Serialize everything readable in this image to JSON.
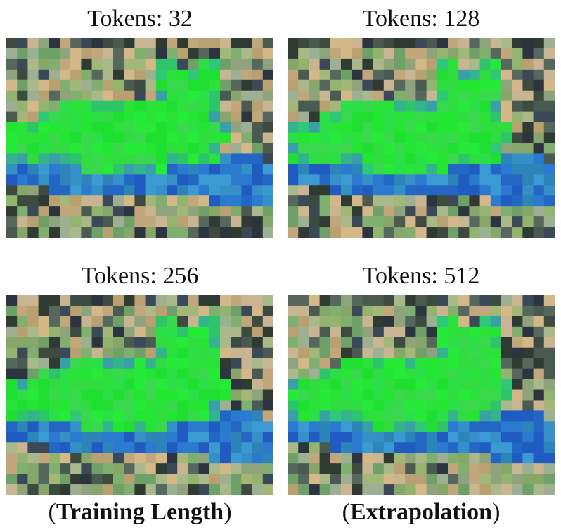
{
  "panels": [
    {
      "title": "Tokens: 32"
    },
    {
      "title": "Tokens: 128"
    },
    {
      "title": "Tokens: 256"
    },
    {
      "title": "Tokens: 512"
    }
  ],
  "captions": {
    "left": {
      "open": "(",
      "bold": "Training Length",
      "close": ")"
    },
    "right": {
      "open": "(",
      "bold": "Extrapolation",
      "close": ")"
    }
  },
  "colors": {
    "cat": "#22e632",
    "background_dark": "#3c4a3e",
    "water_blue": "#2a7bd0"
  }
}
